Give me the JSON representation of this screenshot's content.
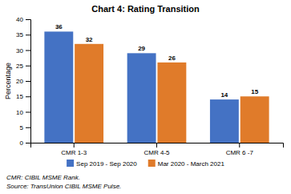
{
  "chart_data": {
    "type": "bar",
    "title": "Chart 4: Rating Transition",
    "categories": [
      "CMR 1-3",
      "CMR 4-5",
      "CMR 6 -7"
    ],
    "series": [
      {
        "name": "Sep 2019 - Sep 2020",
        "color": "#4472C4",
        "values": [
          36,
          29,
          14
        ]
      },
      {
        "name": "Mar 2020 - March 2021",
        "color": "#E07B2A",
        "values": [
          32,
          26,
          15
        ]
      }
    ],
    "ylabel": "Percentage",
    "ylim": [
      0,
      40
    ],
    "yticks": [
      0,
      5,
      10,
      15,
      20,
      25,
      30,
      35,
      40
    ],
    "grid": false,
    "legend": "bottom",
    "data_labels": true,
    "annotations": [
      "CMR: CIBIL MSME Rank.",
      "Source: TransUnion CIBIL MSME Pulse."
    ]
  }
}
